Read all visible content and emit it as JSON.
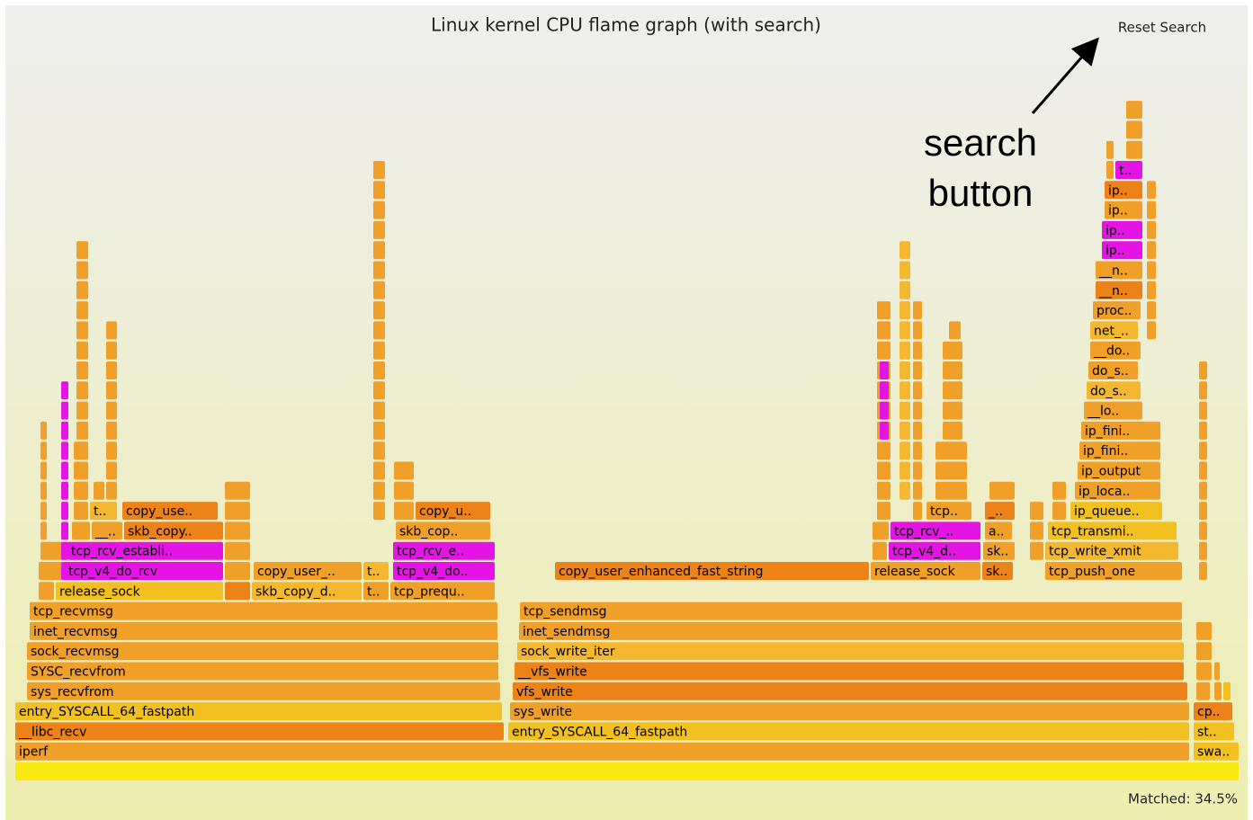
{
  "title": "Linux kernel CPU flame graph (with search)",
  "reset_button": "Reset Search",
  "matched": "Matched: 34.5%",
  "annotation": [
    "search",
    "button"
  ],
  "frames": [
    "iperf",
    "swa..",
    "__libc_recv",
    "entry_SYSCALL_64_fastpath",
    "st..",
    "entry_SYSCALL_64_fastpath",
    "sys_write",
    "cp..",
    "sys_recvfrom",
    "vfs_write",
    "SYSC_recvfrom",
    "__vfs_write",
    "sock_recvmsg",
    "sock_write_iter",
    "inet_recvmsg",
    "inet_sendmsg",
    "tcp_recvmsg",
    "tcp_sendmsg",
    "release_sock",
    "skb_copy_d..",
    "t..",
    "tcp_prequ..",
    "tcp_v4_do_rcv",
    "copy_user_..",
    "t..",
    "tcp_v4_do..",
    "copy_user_enhanced_fast_string",
    "release_sock",
    "sk..",
    "tcp_push_one",
    "tcp_rcv_establi..",
    "tcp_rcv_e..",
    "tcp_v4_d..",
    "sk..",
    "tcp_write_xmit",
    "__..",
    "skb_copy..",
    "skb_cop..",
    "tcp_rcv_..",
    "a..",
    "tcp_transmi..",
    "t..",
    "copy_use..",
    "copy_u..",
    "tcp..",
    "_..",
    "ip_queue..",
    "ip_loca..",
    "ip_output",
    "ip_fini..",
    "ip_fini..",
    "__lo..",
    "do_s..",
    "do_s..",
    "__do..",
    "net_..",
    "proc..",
    "__n..",
    "__n..",
    "ip..",
    "ip..",
    "ip..",
    "ip..",
    "t.."
  ]
}
